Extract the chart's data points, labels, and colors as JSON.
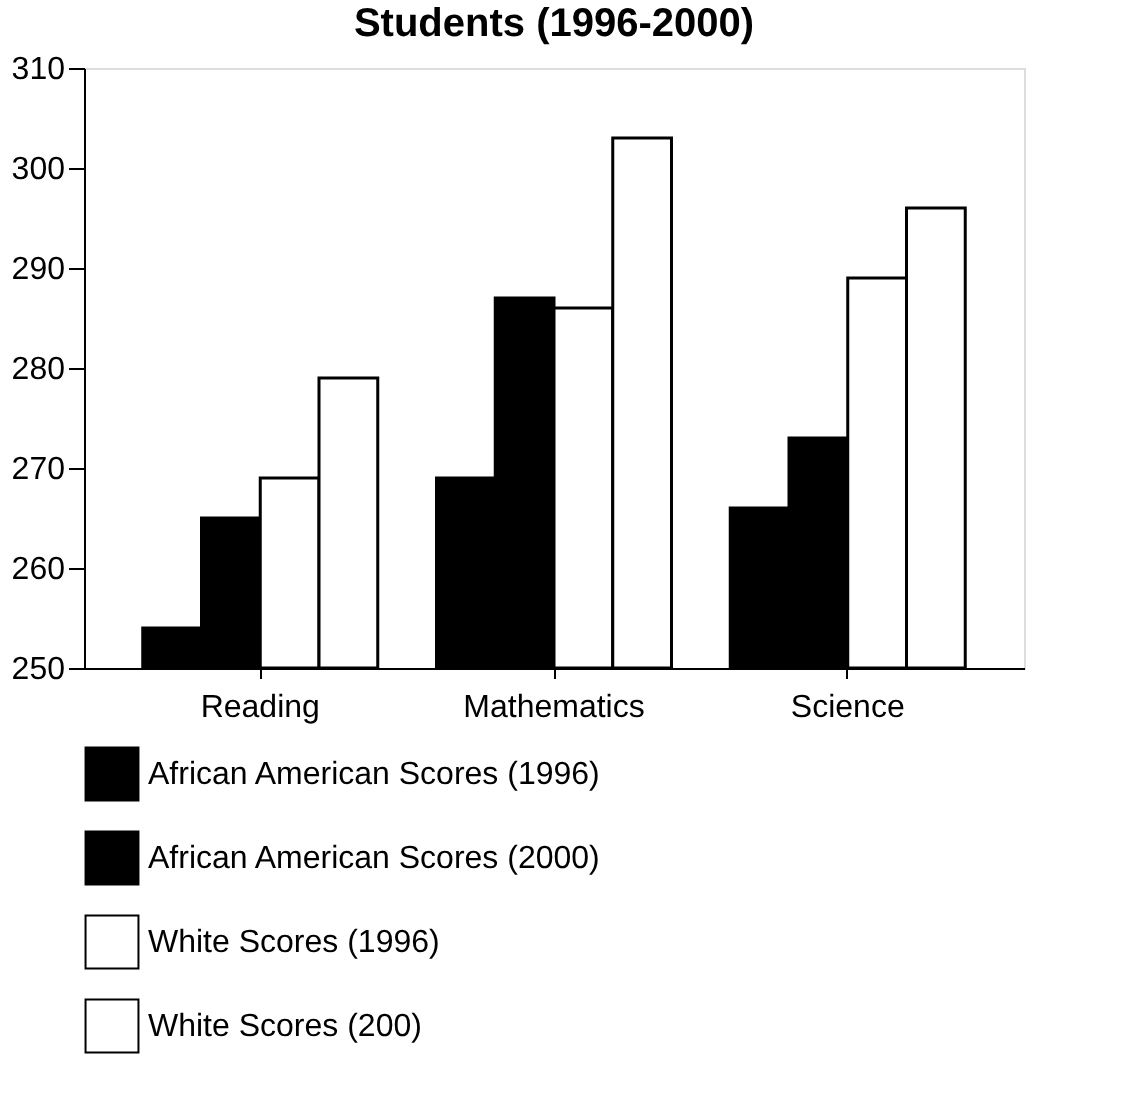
{
  "chart_data": {
    "type": "bar",
    "title": "Students (1996-2000)",
    "categories": [
      "Reading",
      "Mathematics",
      "Science"
    ],
    "series": [
      {
        "name": "African American Scores (1996)",
        "color": "#000000",
        "values": [
          254,
          269,
          266
        ]
      },
      {
        "name": "African American Scores (2000)",
        "color": "#000000",
        "values": [
          265,
          287,
          273
        ]
      },
      {
        "name": "White Scores (1996)",
        "color": "#ffffff",
        "values": [
          269,
          286,
          289
        ]
      },
      {
        "name": "White Scores (200)",
        "color": "#ffffff",
        "values": [
          279,
          303,
          296
        ]
      }
    ],
    "ylim": [
      250,
      310
    ],
    "yticks": [
      250,
      260,
      270,
      280,
      290,
      300,
      310
    ],
    "grid": false,
    "legend": "bottom left"
  }
}
